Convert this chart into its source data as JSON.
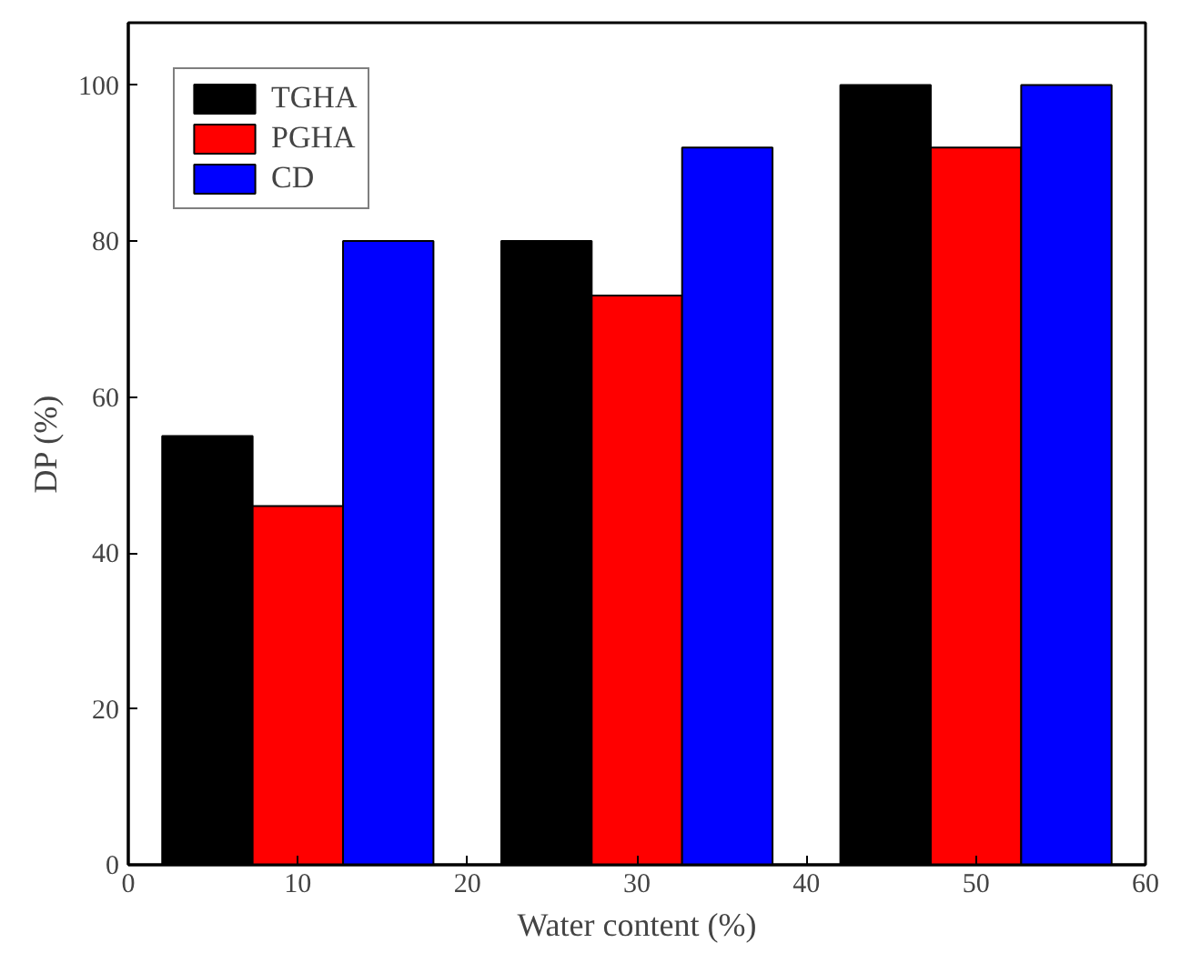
{
  "chart_data": {
    "type": "bar",
    "x": [
      10,
      30,
      50
    ],
    "xlabel": "Water content (%)",
    "ylabel": "DP (%)",
    "series": [
      {
        "name": "TGHA",
        "color": "#000000",
        "values": [
          55,
          80,
          100
        ]
      },
      {
        "name": "PGHA",
        "color": "#ff0000",
        "values": [
          46,
          73,
          92
        ]
      },
      {
        "name": "CD",
        "color": "#0000ff",
        "values": [
          80,
          92,
          100
        ]
      }
    ],
    "xlim": [
      0,
      60
    ],
    "xticks": [
      0,
      10,
      20,
      30,
      40,
      50,
      60
    ],
    "ylim": [
      0,
      108
    ],
    "yticks": [
      0,
      20,
      40,
      60,
      80,
      100
    ],
    "grid": false,
    "legend": "top left"
  }
}
